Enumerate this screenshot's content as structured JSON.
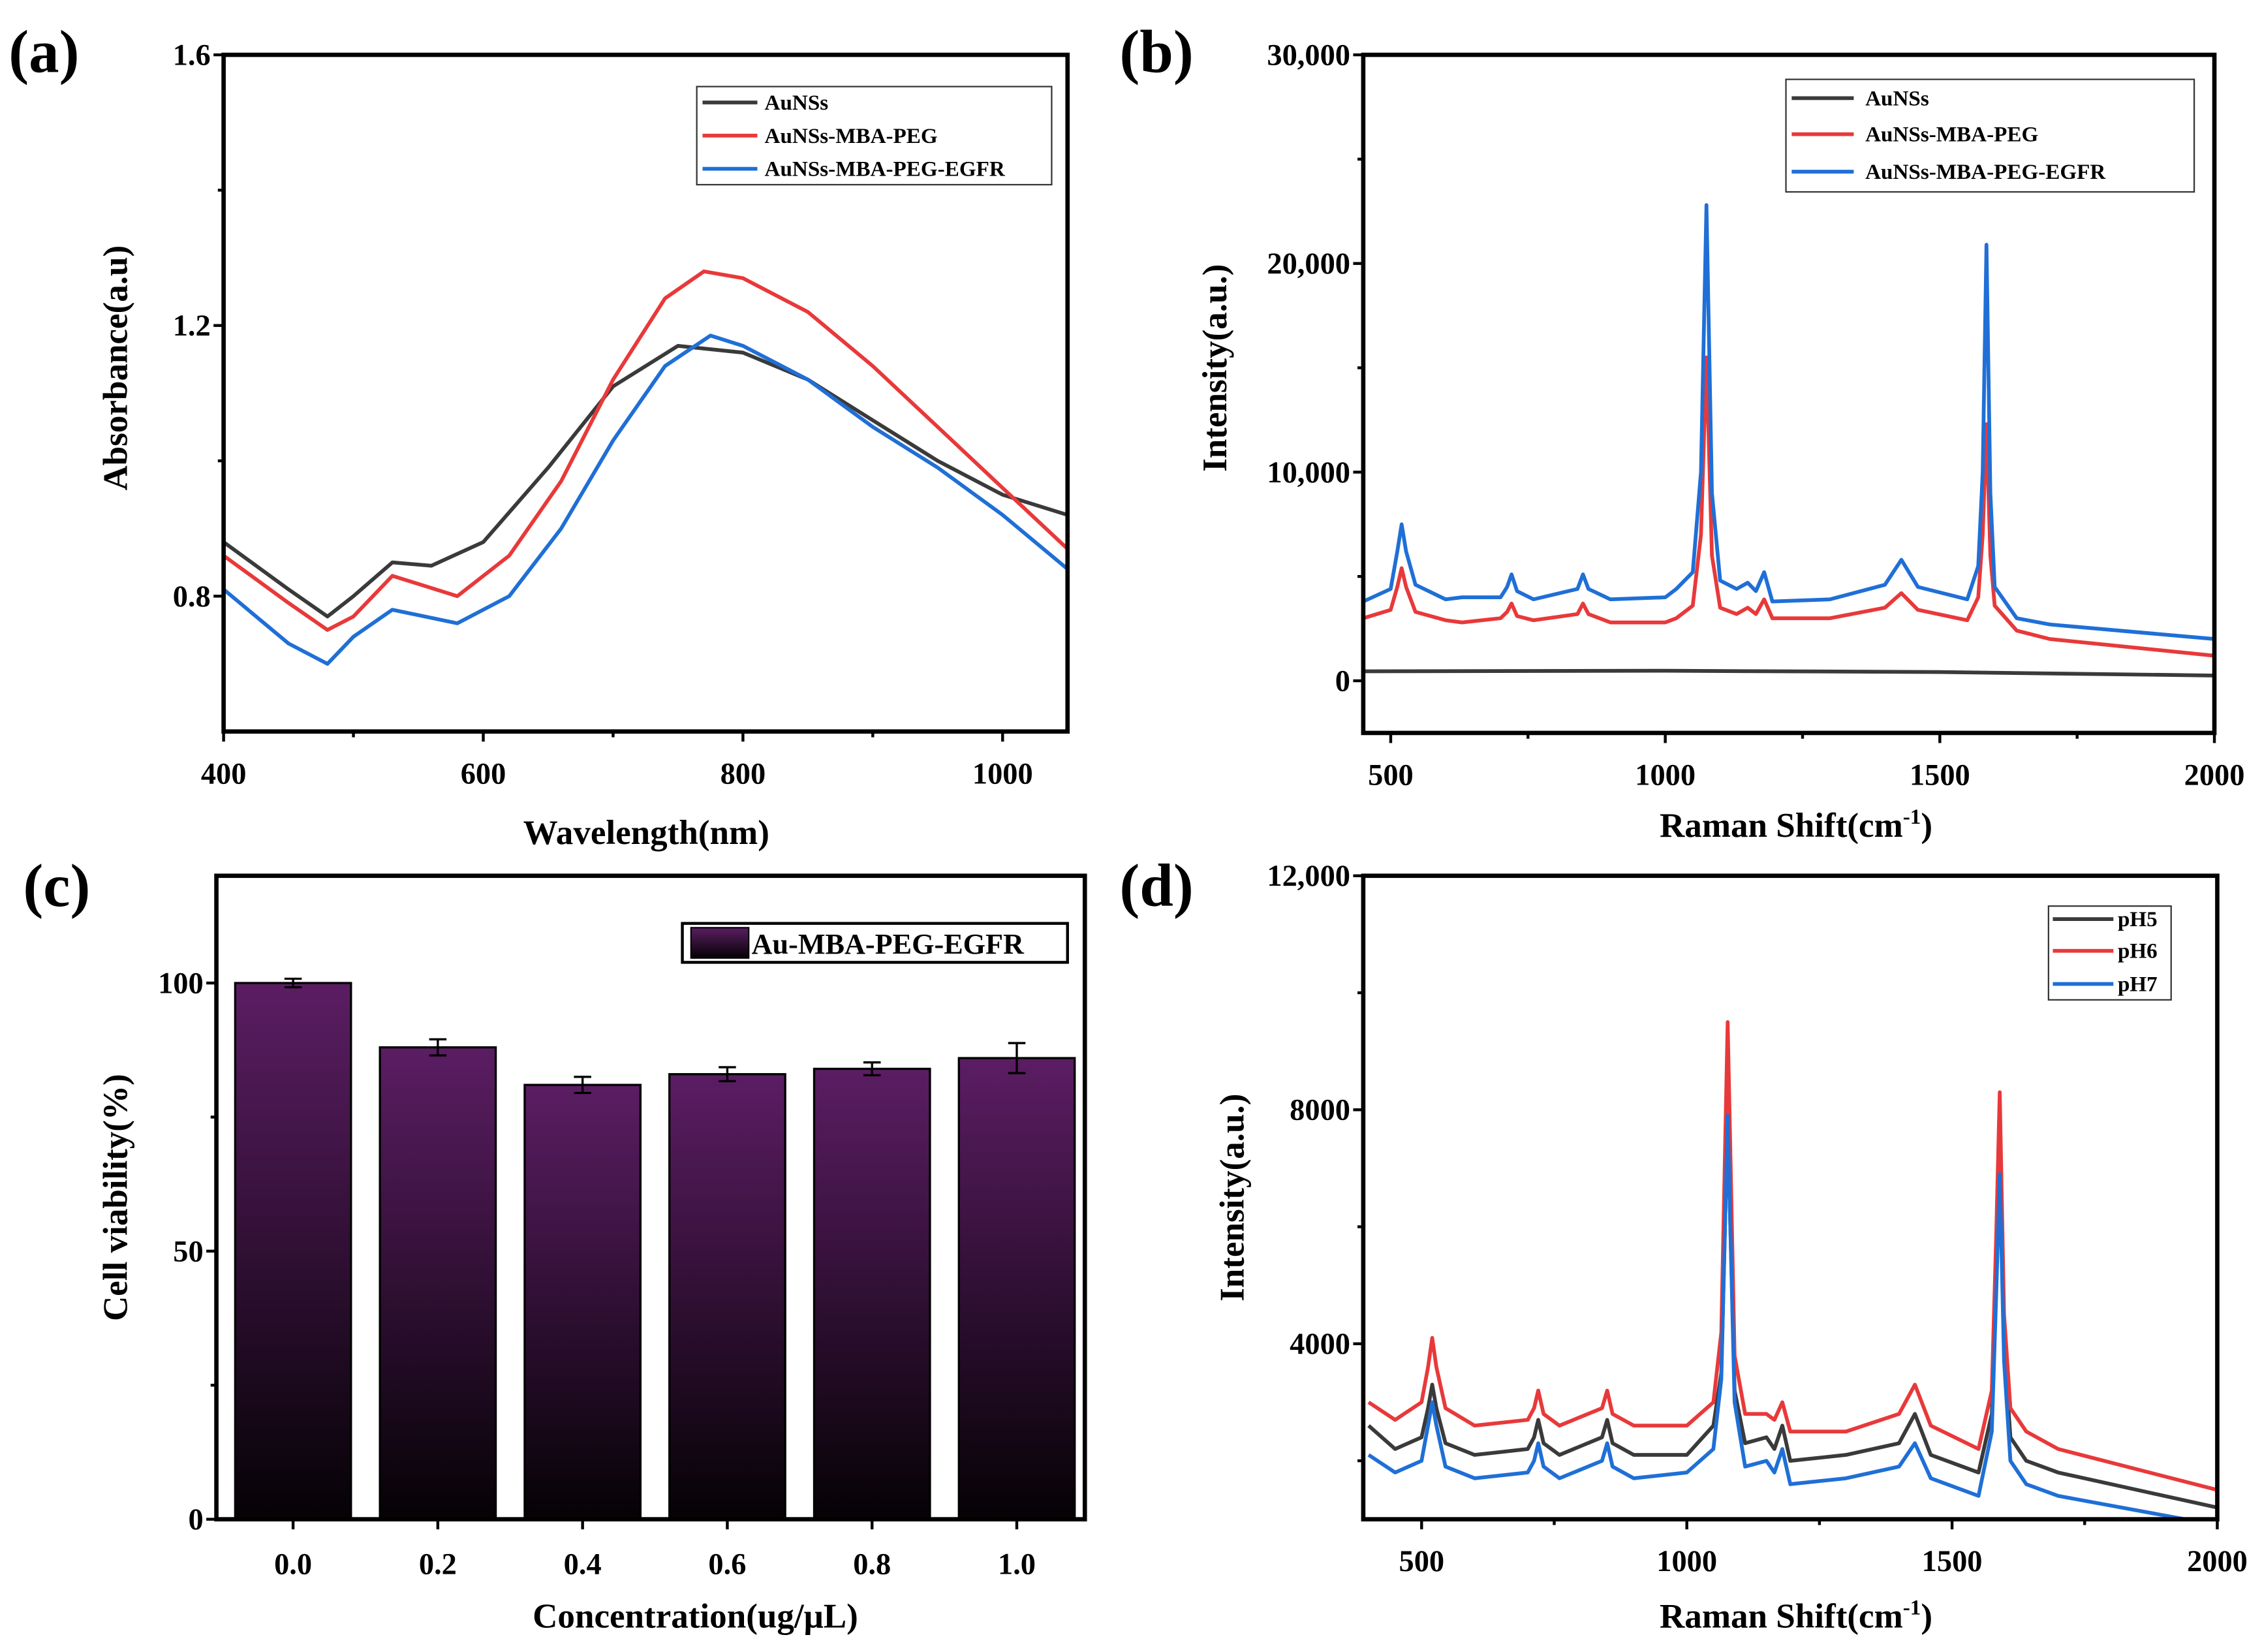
{
  "colors": {
    "black": "#3a3a3a",
    "red": "#e8393a",
    "blue": "#1f6fd6",
    "bar_top": "#5b1d63",
    "bar_bottom": "#050205"
  },
  "chart_data": [
    {
      "panel": "(a)",
      "type": "line",
      "xlabel": "Wavelength(nm)",
      "ylabel": "Absorbance(a.u)",
      "xlim": [
        400,
        1050
      ],
      "ylim": [
        0.6,
        1.6
      ],
      "xticks": [
        400,
        600,
        800,
        1000
      ],
      "xtick_labels": [
        "400",
        "600",
        "800",
        "1000"
      ],
      "yticks": [
        0.8,
        1.2,
        1.6
      ],
      "ytick_labels": [
        "0.8",
        "1.2",
        "1.6"
      ],
      "legend": "top-right",
      "series": [
        {
          "name": "AuNSs",
          "color": "#3a3a3a",
          "x": [
            400,
            450,
            480,
            500,
            530,
            560,
            600,
            650,
            700,
            750,
            800,
            850,
            900,
            950,
            1000,
            1050
          ],
          "y": [
            0.88,
            0.81,
            0.77,
            0.8,
            0.85,
            0.845,
            0.88,
            0.99,
            1.11,
            1.17,
            1.16,
            1.12,
            1.06,
            1.0,
            0.95,
            0.92
          ]
        },
        {
          "name": "AuNSs-MBA-PEG",
          "color": "#e8393a",
          "x": [
            400,
            450,
            480,
            500,
            530,
            580,
            620,
            660,
            700,
            740,
            770,
            800,
            850,
            900,
            950,
            1000,
            1050
          ],
          "y": [
            0.86,
            0.79,
            0.75,
            0.77,
            0.83,
            0.8,
            0.86,
            0.97,
            1.12,
            1.24,
            1.28,
            1.27,
            1.22,
            1.14,
            1.05,
            0.96,
            0.87
          ]
        },
        {
          "name": "AuNSs-MBA-PEG-EGFR",
          "color": "#1f6fd6",
          "x": [
            400,
            450,
            480,
            500,
            530,
            580,
            620,
            660,
            700,
            740,
            775,
            800,
            850,
            900,
            950,
            1000,
            1050
          ],
          "y": [
            0.81,
            0.73,
            0.7,
            0.74,
            0.78,
            0.76,
            0.8,
            0.9,
            1.03,
            1.14,
            1.185,
            1.17,
            1.12,
            1.05,
            0.99,
            0.92,
            0.84
          ]
        }
      ]
    },
    {
      "panel": "(b)",
      "type": "line",
      "xlabel_pre": "Raman Shift(cm",
      "xlabel_sup": "-1",
      "xlabel_post": ")",
      "ylabel": "Intensity(a.u.)",
      "xlim": [
        450,
        2000
      ],
      "ylim": [
        -2500,
        30000
      ],
      "xticks": [
        500,
        1000,
        1500,
        2000
      ],
      "xtick_labels": [
        "500",
        "1000",
        "1500",
        "2000"
      ],
      "yticks": [
        0,
        10000,
        20000,
        30000
      ],
      "ytick_labels": [
        "0",
        "10,000",
        "20,000",
        "30,000"
      ],
      "legend": "top-right",
      "series": [
        {
          "name": "AuNSs",
          "color": "#3a3a3a",
          "x": [
            450,
            1000,
            1500,
            2000
          ],
          "y": [
            450,
            480,
            420,
            250
          ]
        },
        {
          "name": "AuNSs-MBA-PEG",
          "color": "#e8393a",
          "x": [
            450,
            500,
            512,
            520,
            528,
            545,
            600,
            630,
            700,
            712,
            720,
            730,
            760,
            840,
            850,
            860,
            900,
            1000,
            1020,
            1050,
            1065,
            1075,
            1085,
            1100,
            1130,
            1150,
            1165,
            1180,
            1195,
            1300,
            1400,
            1430,
            1460,
            1550,
            1570,
            1578,
            1585,
            1592,
            1600,
            1640,
            1700,
            2000
          ],
          "y": [
            3000,
            3400,
            4500,
            5400,
            4500,
            3300,
            2900,
            2800,
            3000,
            3300,
            3700,
            3100,
            2900,
            3200,
            3700,
            3200,
            2800,
            2800,
            3000,
            3600,
            7000,
            15500,
            6000,
            3500,
            3200,
            3500,
            3200,
            3900,
            3000,
            3000,
            3500,
            4200,
            3400,
            2900,
            4000,
            7000,
            12300,
            6000,
            3600,
            2400,
            2000,
            1200
          ]
        },
        {
          "name": "AuNSs-MBA-PEG-EGFR",
          "color": "#1f6fd6",
          "x": [
            450,
            500,
            512,
            520,
            528,
            545,
            600,
            630,
            700,
            712,
            720,
            730,
            760,
            840,
            850,
            860,
            900,
            1000,
            1020,
            1050,
            1065,
            1075,
            1085,
            1100,
            1130,
            1150,
            1165,
            1180,
            1195,
            1300,
            1400,
            1430,
            1460,
            1550,
            1570,
            1578,
            1585,
            1592,
            1600,
            1640,
            1700,
            2000
          ],
          "y": [
            3800,
            4400,
            6200,
            7500,
            6200,
            4600,
            3900,
            4000,
            4000,
            4500,
            5100,
            4300,
            3900,
            4400,
            5100,
            4400,
            3900,
            4000,
            4400,
            5200,
            10000,
            22800,
            9000,
            4800,
            4400,
            4700,
            4300,
            5200,
            3800,
            3900,
            4600,
            5800,
            4500,
            3900,
            5500,
            10000,
            20900,
            9000,
            4500,
            3000,
            2700,
            2000
          ]
        }
      ]
    },
    {
      "panel": "(c)",
      "type": "bar",
      "xlabel": "Concentration(ug/μL)",
      "ylabel": "Cell viability(%)",
      "ylim": [
        0,
        120
      ],
      "yticks": [
        0,
        50,
        100
      ],
      "ytick_labels": [
        "0",
        "50",
        "100"
      ],
      "categories": [
        "0.0",
        "0.2",
        "0.4",
        "0.6",
        "0.8",
        "1.0"
      ],
      "legend": "top-right",
      "series": [
        {
          "name": "Au-MBA-PEG-EGFR",
          "values": [
            100,
            88,
            81,
            83,
            84,
            86
          ],
          "errors": [
            0.8,
            1.5,
            1.5,
            1.3,
            1.2,
            2.8
          ]
        }
      ]
    },
    {
      "panel": "(d)",
      "type": "line",
      "xlabel_pre": "Raman Shift(cm",
      "xlabel_sup": "-1",
      "xlabel_post": ")",
      "ylabel": "Intensity(a.u.)",
      "xlim": [
        390,
        2000
      ],
      "ylim": [
        1000,
        12000
      ],
      "xticks": [
        500,
        1000,
        1500,
        2000
      ],
      "xtick_labels": [
        "500",
        "1000",
        "1500",
        "2000"
      ],
      "yticks": [
        4000,
        8000,
        12000
      ],
      "ytick_labels": [
        "4000",
        "8000",
        "12,000"
      ],
      "legend": "top-right",
      "series": [
        {
          "name": "pH5",
          "color": "#3a3a3a",
          "x": [
            400,
            450,
            500,
            512,
            520,
            528,
            545,
            600,
            700,
            712,
            720,
            730,
            760,
            840,
            850,
            860,
            900,
            1000,
            1050,
            1065,
            1077,
            1090,
            1110,
            1150,
            1165,
            1180,
            1195,
            1300,
            1400,
            1430,
            1460,
            1550,
            1575,
            1583,
            1590,
            1598,
            1610,
            1640,
            1700,
            2000
          ],
          "y": [
            2600,
            2200,
            2400,
            2900,
            3300,
            2900,
            2300,
            2100,
            2200,
            2400,
            2700,
            2300,
            2100,
            2400,
            2700,
            2300,
            2100,
            2100,
            2600,
            3500,
            7800,
            3200,
            2300,
            2400,
            2200,
            2600,
            2000,
            2100,
            2300,
            2800,
            2100,
            1800,
            2800,
            5000,
            6900,
            4000,
            2400,
            2000,
            1800,
            1200
          ]
        },
        {
          "name": "pH6",
          "color": "#e8393a",
          "x": [
            400,
            450,
            500,
            512,
            520,
            528,
            545,
            600,
            700,
            712,
            720,
            730,
            760,
            840,
            850,
            860,
            900,
            1000,
            1050,
            1065,
            1077,
            1090,
            1110,
            1150,
            1165,
            1180,
            1195,
            1300,
            1400,
            1430,
            1460,
            1550,
            1575,
            1583,
            1590,
            1598,
            1610,
            1640,
            1700,
            2000
          ],
          "y": [
            3000,
            2700,
            3000,
            3600,
            4100,
            3600,
            2900,
            2600,
            2700,
            2900,
            3200,
            2800,
            2600,
            2900,
            3200,
            2800,
            2600,
            2600,
            3000,
            4200,
            9500,
            3800,
            2800,
            2800,
            2700,
            3000,
            2500,
            2500,
            2800,
            3300,
            2600,
            2200,
            3200,
            5800,
            8300,
            4500,
            2900,
            2500,
            2200,
            1500
          ]
        },
        {
          "name": "pH7",
          "color": "#1f6fd6",
          "x": [
            400,
            450,
            500,
            512,
            520,
            528,
            545,
            600,
            700,
            712,
            720,
            730,
            760,
            840,
            850,
            860,
            900,
            1000,
            1050,
            1065,
            1077,
            1090,
            1110,
            1150,
            1165,
            1180,
            1195,
            1300,
            1400,
            1430,
            1460,
            1550,
            1575,
            1583,
            1590,
            1598,
            1610,
            1640,
            1700,
            2000
          ],
          "y": [
            2100,
            1800,
            2000,
            2600,
            3000,
            2600,
            1900,
            1700,
            1800,
            2000,
            2300,
            1900,
            1700,
            2000,
            2300,
            1900,
            1700,
            1800,
            2200,
            3400,
            7900,
            3000,
            1900,
            2000,
            1800,
            2200,
            1600,
            1700,
            1900,
            2300,
            1700,
            1400,
            2500,
            4800,
            6900,
            3700,
            2000,
            1600,
            1400,
            900
          ]
        }
      ]
    }
  ]
}
